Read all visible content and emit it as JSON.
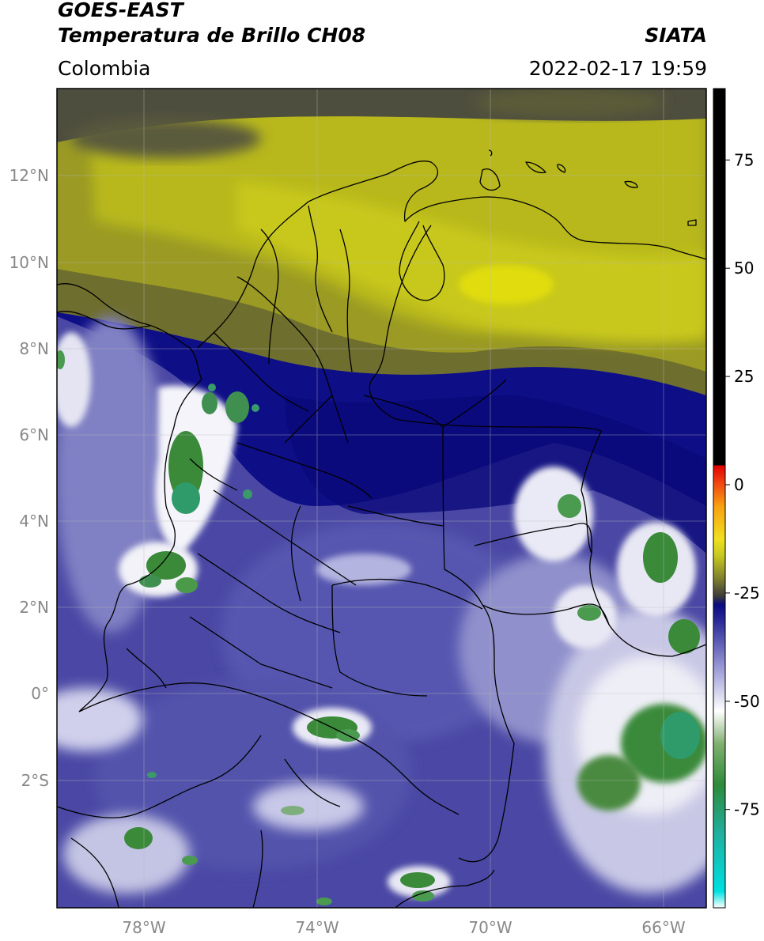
{
  "header": {
    "satellite": "GOES-EAST",
    "product": "Temperatura de Brillo CH08",
    "region": "Colombia",
    "agency": "SIATA",
    "datetime": "2022-02-17 19:59"
  },
  "map": {
    "lat_labels": [
      "12°N",
      "10°N",
      "8°N",
      "6°N",
      "4°N",
      "2°N",
      "0°",
      "2°S"
    ],
    "lon_labels": [
      "78°W",
      "74°W",
      "70°W",
      "66°W"
    ]
  },
  "colorbar": {
    "ticks": [
      "75",
      "50",
      "25",
      "0",
      "-25",
      "-50",
      "-75"
    ],
    "tick_values": [
      75,
      50,
      25,
      0,
      -25,
      -50,
      -75
    ]
  },
  "colors": {
    "dry_dark": "#4a4a4a",
    "dry_olive": "#8a8a2a",
    "dry_yellow": "#c4c420",
    "cold_navy": "#0c0c84",
    "mid_blue": "#4646a6",
    "light_lavender": "#b8b8e0",
    "cloud_white": "#f4f4fa",
    "deep_green": "#3a8a3a",
    "teal": "#30b090"
  }
}
